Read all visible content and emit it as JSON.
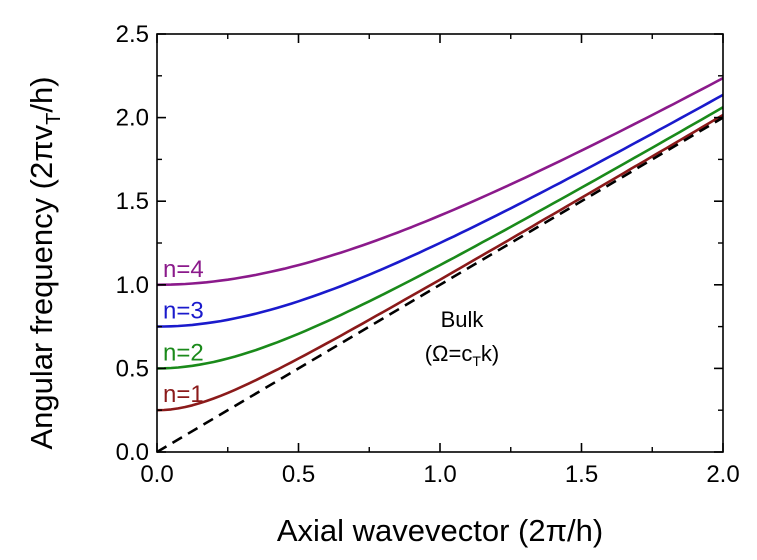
{
  "chart_data": {
    "type": "line",
    "xlabel": "Axial wavevector (2π/h)",
    "ylabel": {
      "prefix": "Angular frequency (2πv",
      "subscript": "T",
      "suffix": "/h)"
    },
    "xlim": [
      0,
      2.0
    ],
    "ylim": [
      0,
      2.5
    ],
    "xticks": [
      "0.0",
      "0.5",
      "1.0",
      "1.5",
      "2.0"
    ],
    "yticks": [
      "0.0",
      "0.5",
      "1.0",
      "1.5",
      "2.0",
      "2.5"
    ],
    "grid": false,
    "series": [
      {
        "name": "n=1",
        "color": "#8b1a1a",
        "cutoff": 0.25,
        "x": [
          0,
          0.25,
          0.5,
          0.75,
          1.0,
          1.25,
          1.5,
          1.75,
          2.0
        ],
        "y": [
          0.25,
          0.32,
          0.55,
          0.79,
          1.03,
          1.28,
          1.52,
          1.77,
          2.02
        ]
      },
      {
        "name": "n=2",
        "color": "#1a8a1a",
        "cutoff": 0.5,
        "x": [
          0,
          0.25,
          0.5,
          0.75,
          1.0,
          1.25,
          1.5,
          1.75,
          2.0
        ],
        "y": [
          0.5,
          0.54,
          0.67,
          0.86,
          1.07,
          1.3,
          1.54,
          1.8,
          2.06
        ]
      },
      {
        "name": "n=3",
        "color": "#1a1acc",
        "cutoff": 0.75,
        "x": [
          0,
          0.25,
          0.5,
          0.75,
          1.0,
          1.25,
          1.5,
          1.75,
          2.0
        ],
        "y": [
          0.75,
          0.78,
          0.87,
          1.0,
          1.18,
          1.38,
          1.61,
          1.86,
          2.13
        ]
      },
      {
        "name": "n=4",
        "color": "#8b1a8b",
        "cutoff": 1.0,
        "x": [
          0,
          0.25,
          0.5,
          0.75,
          1.0,
          1.25,
          1.5,
          1.75,
          2.0
        ],
        "y": [
          1.0,
          1.03,
          1.1,
          1.21,
          1.37,
          1.56,
          1.77,
          1.99,
          2.23
        ]
      },
      {
        "name": "bulk",
        "color": "#000000",
        "dashed": true,
        "x": [
          0,
          2.0
        ],
        "y": [
          0,
          2.0
        ]
      }
    ],
    "annotations": {
      "bulk_title": "Bulk",
      "bulk_formula": {
        "prefix": "(Ω=c",
        "subscript": "T",
        "suffix": "k)"
      }
    }
  }
}
